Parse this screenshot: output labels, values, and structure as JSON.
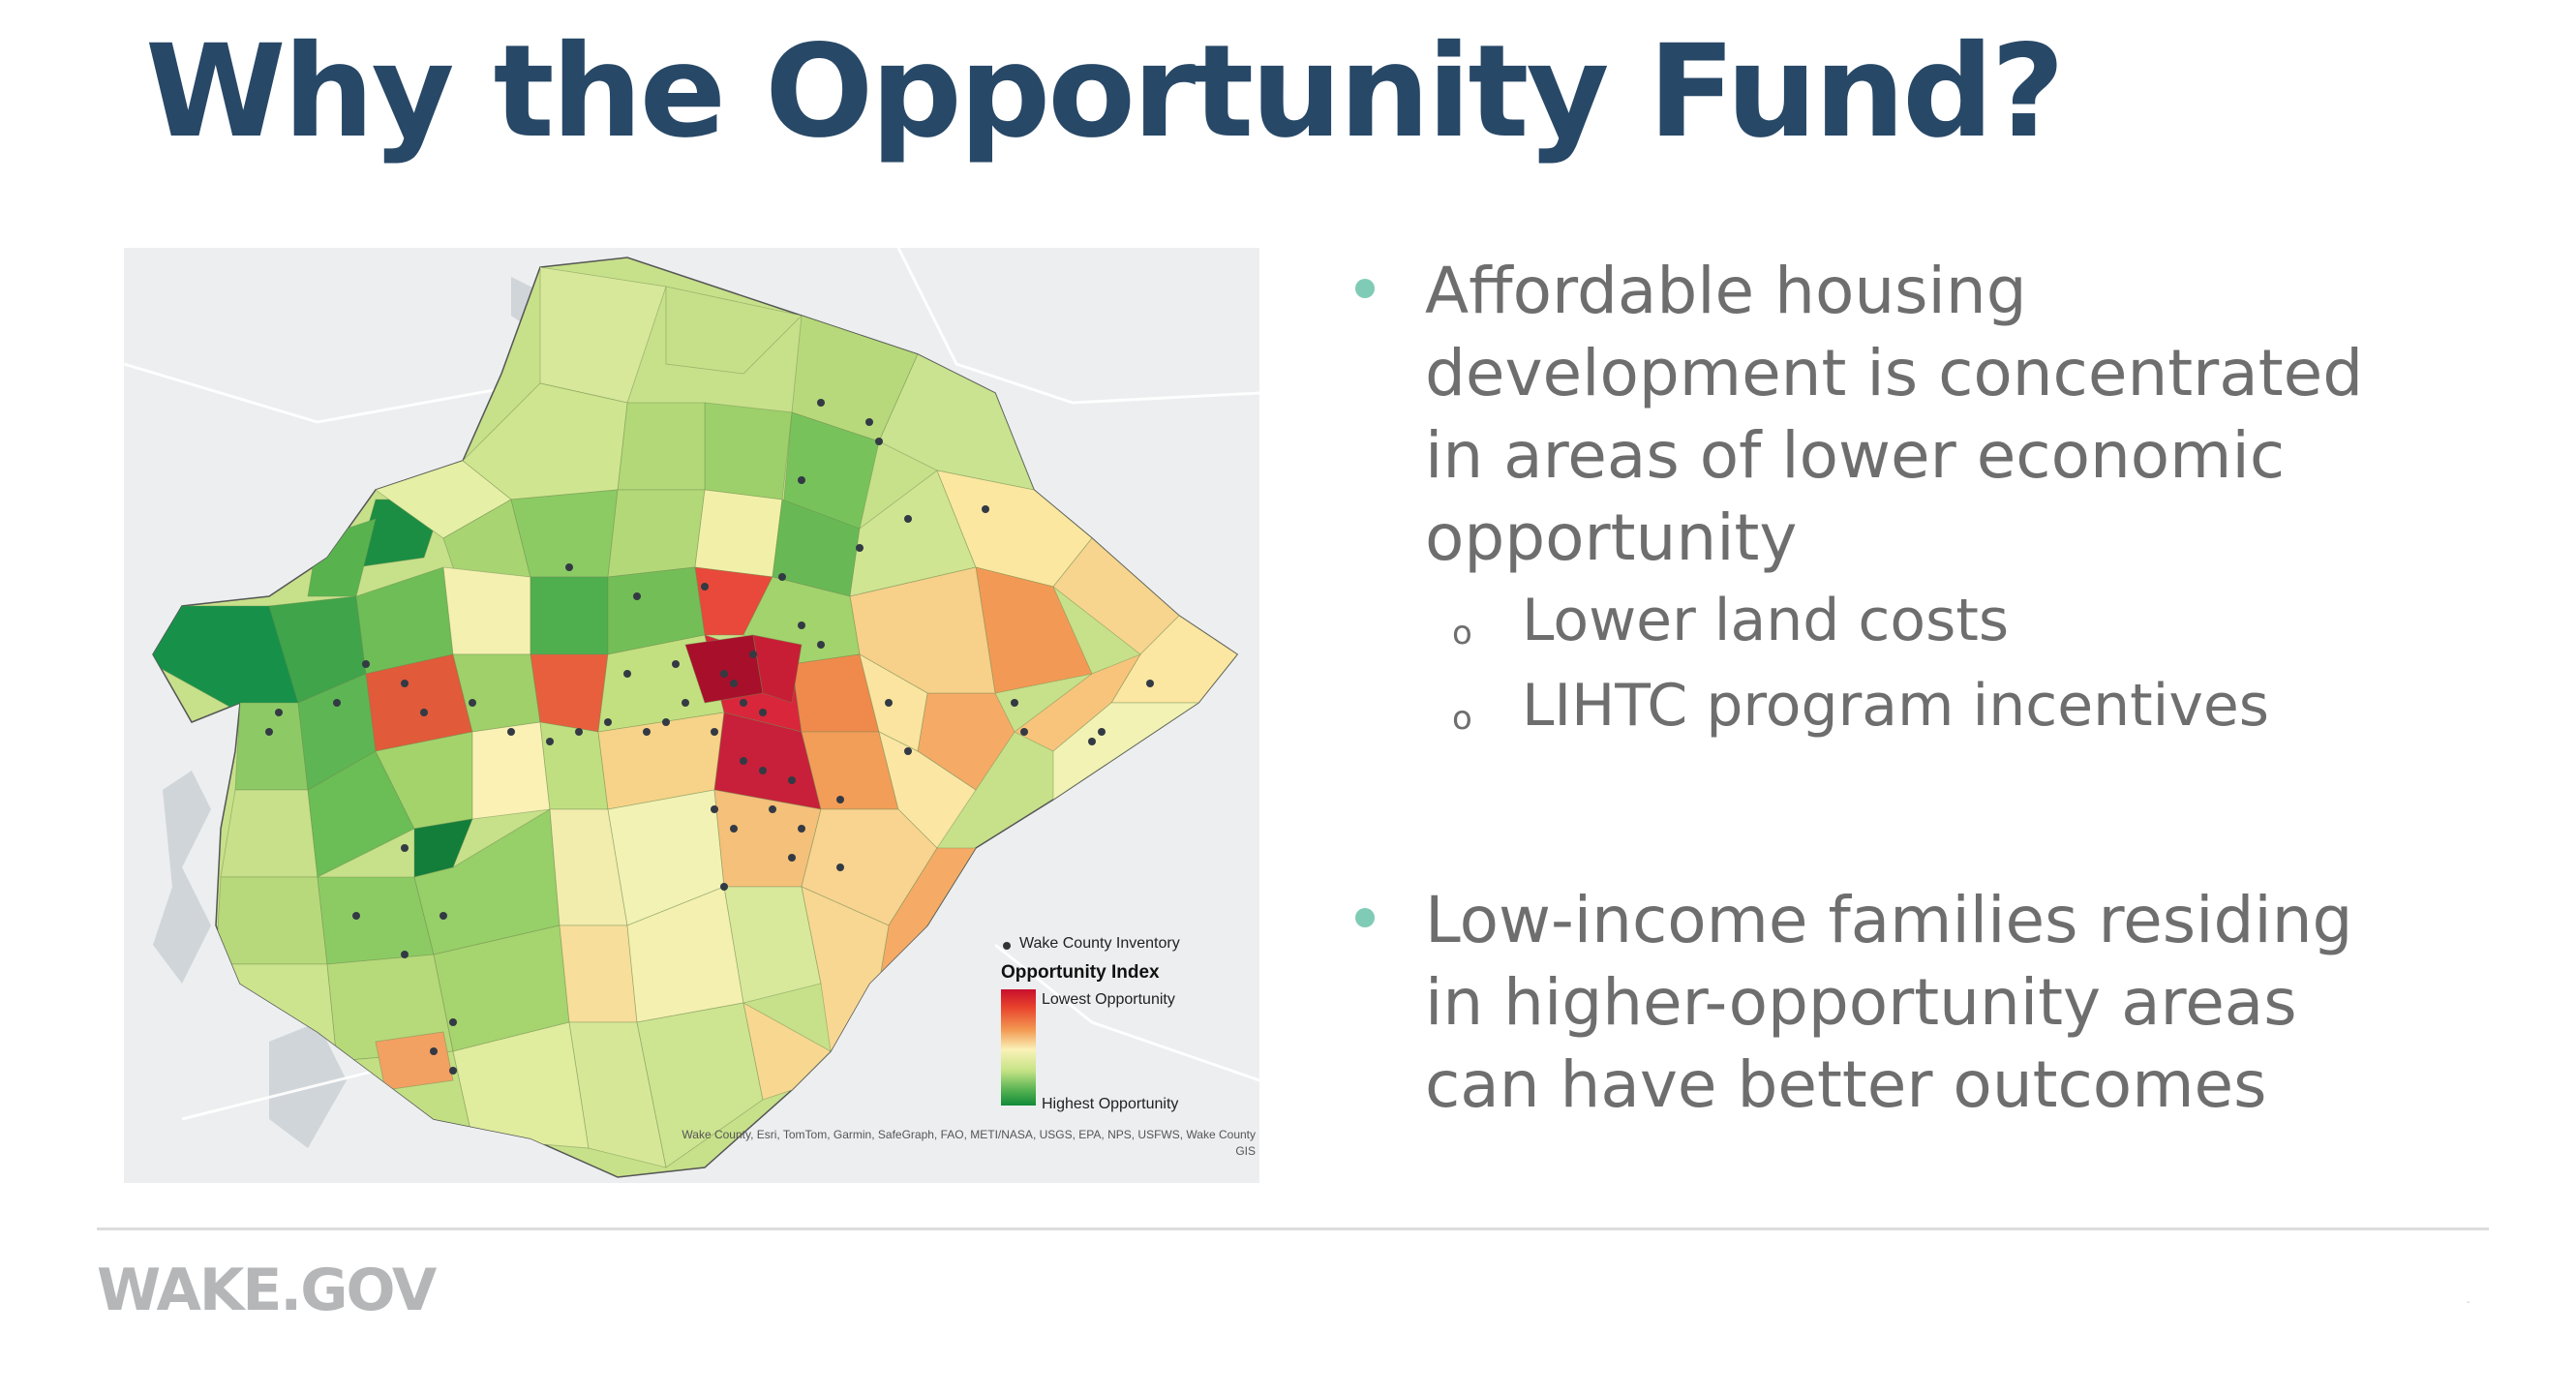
{
  "slide": {
    "title": "Why the Opportunity Fund?",
    "footer_logo": "WAKE.GOV",
    "page_mark": "-"
  },
  "map": {
    "legend": {
      "inventory_label": "Wake County Inventory",
      "index_title": "Opportunity Index",
      "lowest_label": "Lowest Opportunity",
      "highest_label": "Highest Opportunity"
    },
    "attribution_line1": "Wake County, Esri, TomTom, Garmin, SafeGraph, FAO, METI/NASA, USGS, EPA, NPS, USFWS, Wake County",
    "attribution_line2": "GIS",
    "colors": {
      "lowest": "#c8102e",
      "low": "#f39a52",
      "mid": "#faf2b8",
      "high": "#c5e385",
      "highest": "#118a3a"
    }
  },
  "bullets": [
    {
      "lines": [
        "Affordable housing",
        "development is concentrated",
        "in areas of lower economic",
        "opportunity"
      ],
      "subitems": [
        "Lower land costs",
        "LIHTC program incentives"
      ]
    },
    {
      "lines": [
        "Low-income families residing",
        "in higher-opportunity areas",
        "can have better outcomes"
      ],
      "subitems": []
    }
  ],
  "sub_marker": "o",
  "accent_color": "#7fcbb6",
  "title_color": "#284867"
}
